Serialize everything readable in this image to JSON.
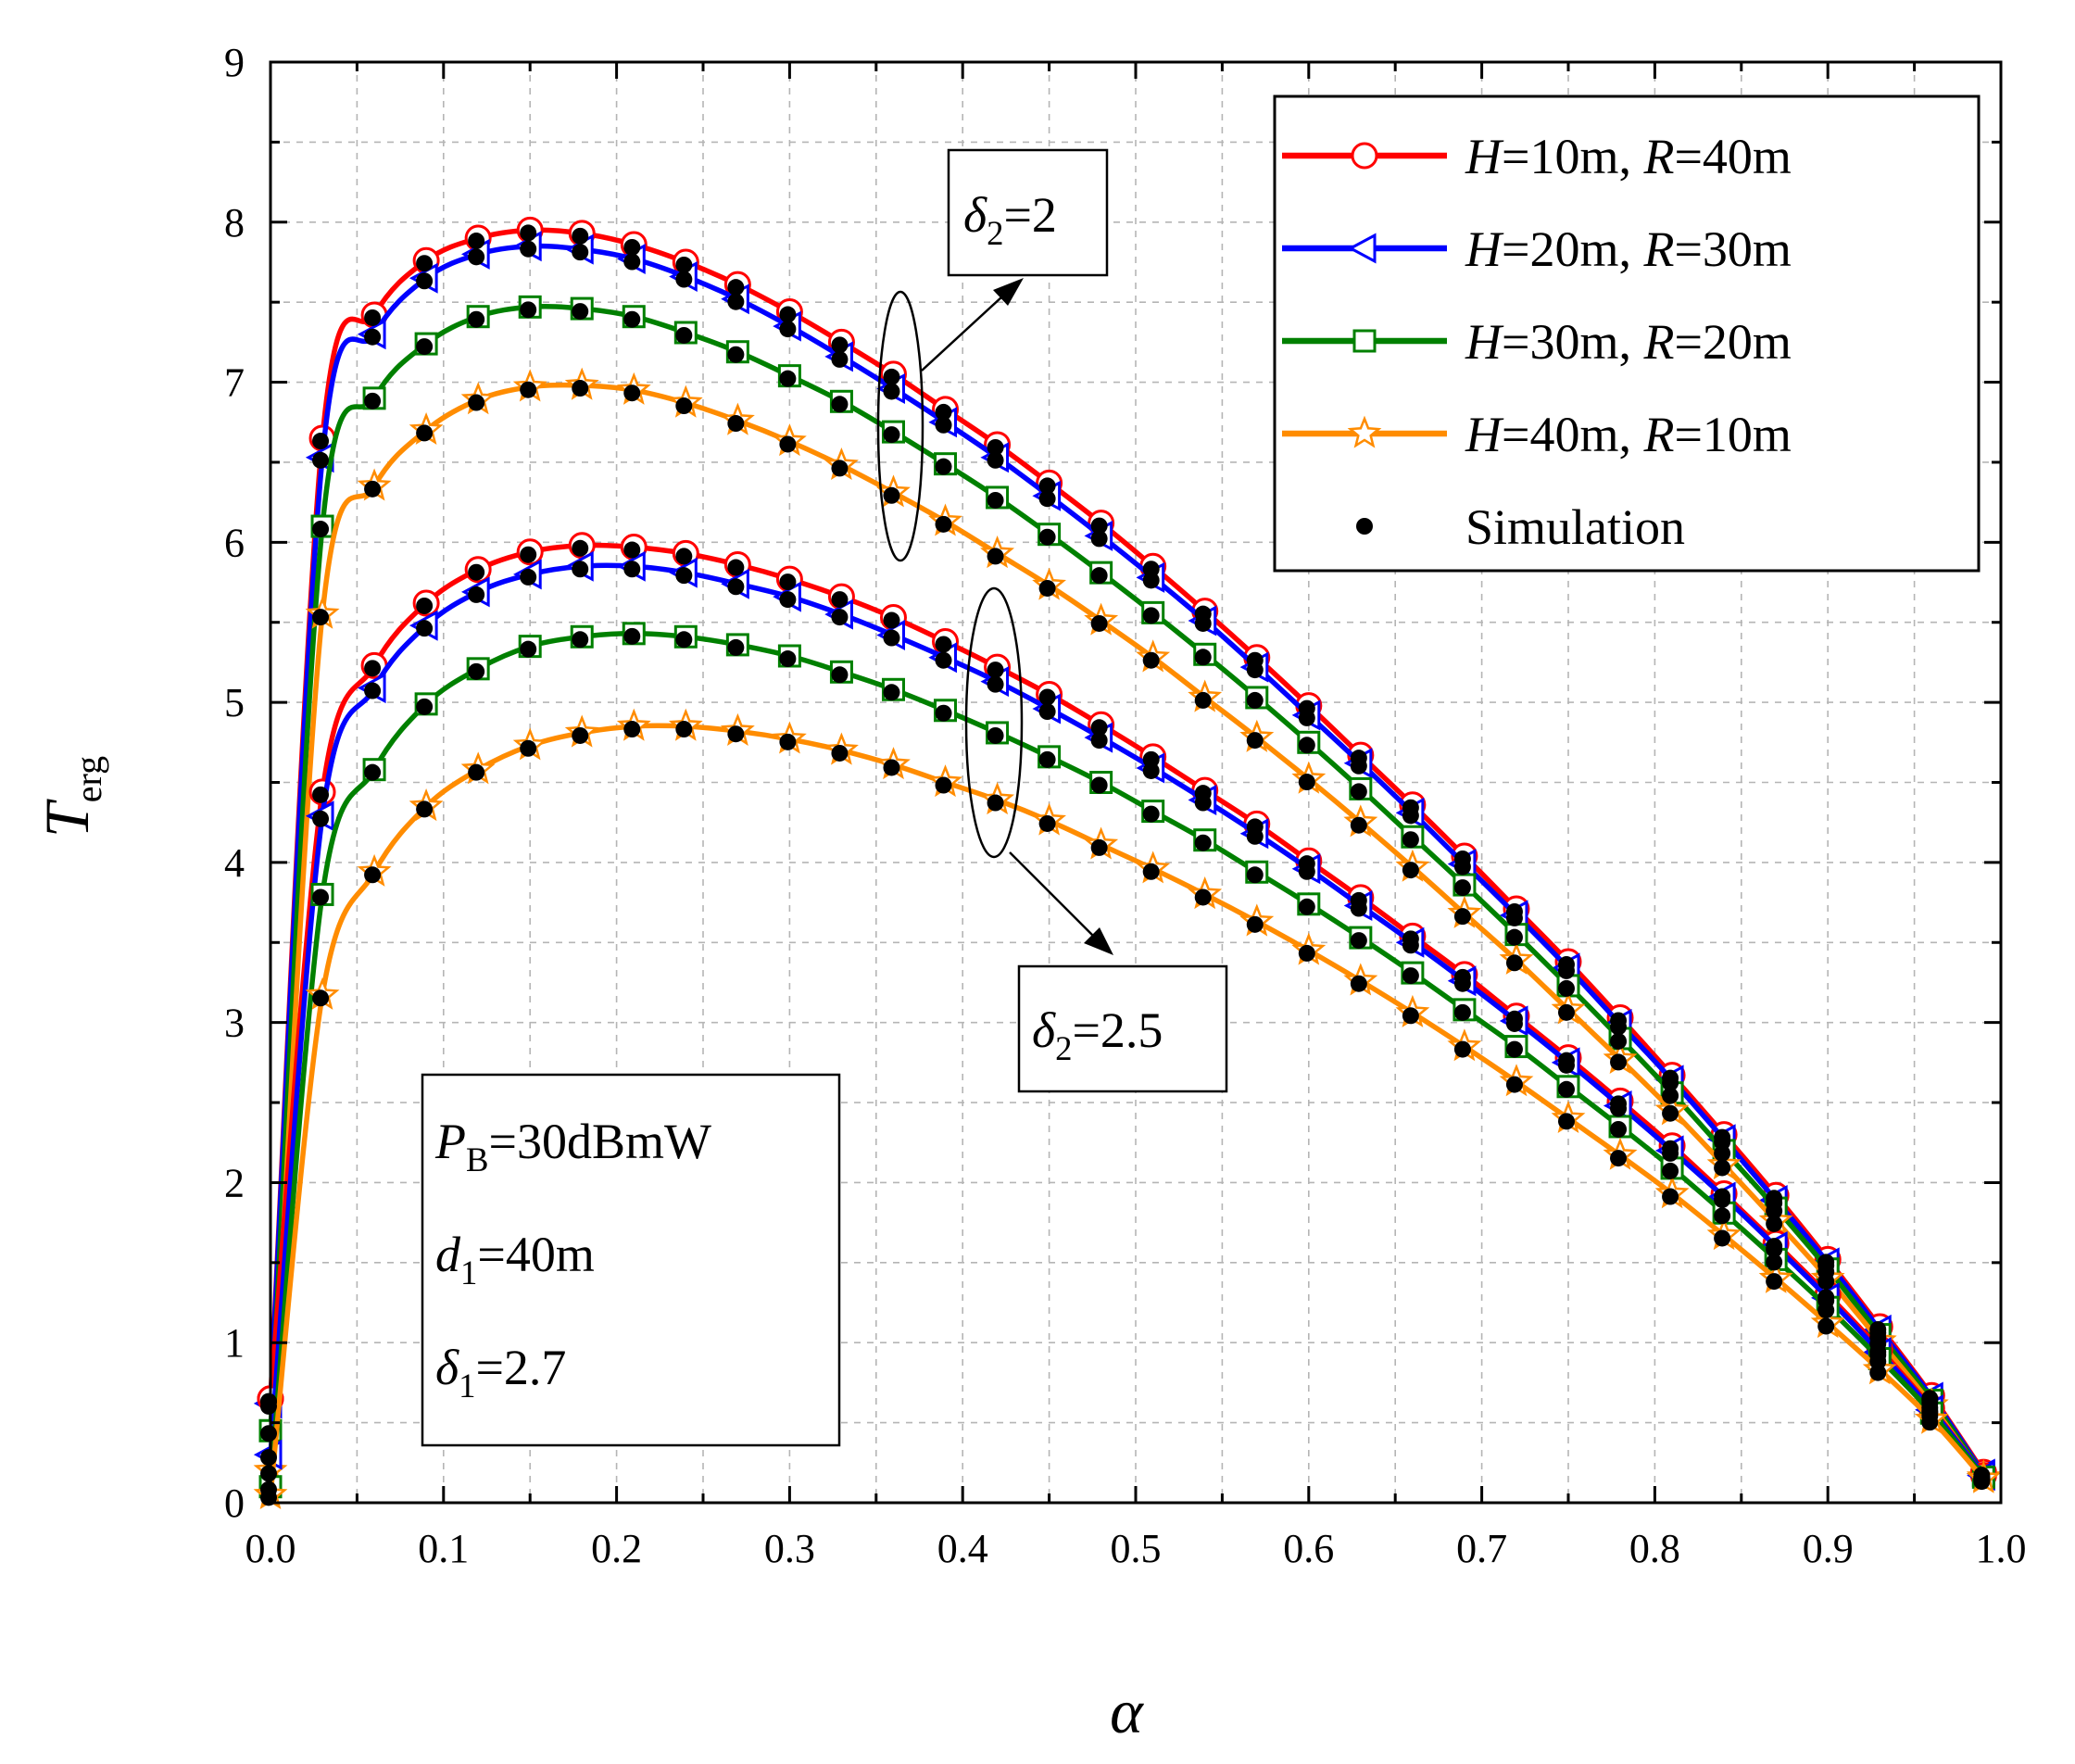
{
  "chart_data": {
    "type": "line",
    "xlabel": "α",
    "ylabel": "T",
    "ylabel_sub": "erg",
    "xlim": [
      0,
      1
    ],
    "ylim": [
      0,
      9
    ],
    "xticks": [
      "0.0",
      "0.1",
      "0.2",
      "0.3",
      "0.4",
      "0.5",
      "0.6",
      "0.7",
      "0.8",
      "0.9",
      "1.0"
    ],
    "yticks": [
      "0",
      "1",
      "2",
      "3",
      "4",
      "5",
      "6",
      "7",
      "8",
      "9"
    ],
    "grid": true,
    "legend_position": "top-right",
    "x": [
      0,
      0.03,
      0.06,
      0.09,
      0.12,
      0.15,
      0.18,
      0.21,
      0.24,
      0.27,
      0.3,
      0.33,
      0.36,
      0.39,
      0.42,
      0.45,
      0.48,
      0.51,
      0.54,
      0.57,
      0.6,
      0.63,
      0.66,
      0.69,
      0.72,
      0.75,
      0.78,
      0.81,
      0.84,
      0.87,
      0.9,
      0.93,
      0.96,
      0.99
    ],
    "groups": [
      {
        "label": "δ2=2",
        "series": [
          {
            "name": "H=10m, R=40m",
            "color": "#ff0000",
            "marker": "circle",
            "values": [
              0.65,
              6.65,
              7.42,
              7.76,
              7.9,
              7.95,
              7.93,
              7.86,
              7.75,
              7.61,
              7.44,
              7.25,
              7.05,
              6.83,
              6.61,
              6.37,
              6.12,
              5.85,
              5.57,
              5.28,
              4.98,
              4.67,
              4.36,
              4.04,
              3.71,
              3.38,
              3.03,
              2.67,
              2.3,
              1.92,
              1.52,
              1.1,
              0.67,
              0.19
            ]
          },
          {
            "name": "H=20m, R=30m",
            "color": "#0000ff",
            "marker": "triangle-left",
            "values": [
              0.62,
              6.53,
              7.3,
              7.65,
              7.8,
              7.85,
              7.83,
              7.77,
              7.66,
              7.52,
              7.35,
              7.16,
              6.96,
              6.75,
              6.53,
              6.29,
              6.04,
              5.78,
              5.51,
              5.22,
              4.92,
              4.62,
              4.31,
              3.99,
              3.67,
              3.34,
              2.99,
              2.64,
              2.27,
              1.89,
              1.5,
              1.08,
              0.66,
              0.18
            ]
          },
          {
            "name": "H=30m, R=20m",
            "color": "#008000",
            "marker": "square",
            "values": [
              0.45,
              6.1,
              6.9,
              7.24,
              7.41,
              7.47,
              7.46,
              7.41,
              7.31,
              7.19,
              7.04,
              6.88,
              6.69,
              6.49,
              6.28,
              6.05,
              5.81,
              5.56,
              5.3,
              5.03,
              4.75,
              4.46,
              4.16,
              3.86,
              3.55,
              3.23,
              2.9,
              2.56,
              2.2,
              1.84,
              1.46,
              1.05,
              0.64,
              0.17
            ]
          },
          {
            "name": "H=40m, R=10m",
            "color": "#ff8c00",
            "marker": "star",
            "values": [
              0.2,
              5.55,
              6.35,
              6.7,
              6.89,
              6.97,
              6.98,
              6.95,
              6.87,
              6.76,
              6.63,
              6.48,
              6.31,
              6.13,
              5.93,
              5.73,
              5.51,
              5.28,
              5.03,
              4.78,
              4.52,
              4.25,
              3.97,
              3.68,
              3.39,
              3.08,
              2.77,
              2.45,
              2.11,
              1.76,
              1.4,
              1.01,
              0.61,
              0.16
            ]
          }
        ]
      },
      {
        "label": "δ2=2.5",
        "series": [
          {
            "name": "H=10m, R=40m",
            "color": "#ff0000",
            "marker": "circle",
            "values": [
              0.65,
              4.44,
              5.23,
              5.62,
              5.83,
              5.94,
              5.98,
              5.97,
              5.93,
              5.86,
              5.77,
              5.66,
              5.53,
              5.38,
              5.22,
              5.05,
              4.86,
              4.66,
              4.45,
              4.24,
              4.01,
              3.78,
              3.54,
              3.3,
              3.04,
              2.78,
              2.51,
              2.23,
              1.93,
              1.62,
              1.3,
              0.96,
              0.59,
              0.17
            ]
          },
          {
            "name": "H=20m, R=30m",
            "color": "#0000ff",
            "marker": "triangle-left",
            "values": [
              0.3,
              4.29,
              5.09,
              5.48,
              5.69,
              5.8,
              5.85,
              5.85,
              5.81,
              5.74,
              5.66,
              5.55,
              5.42,
              5.28,
              5.13,
              4.96,
              4.78,
              4.59,
              4.39,
              4.18,
              3.96,
              3.73,
              3.5,
              3.26,
              3.01,
              2.75,
              2.48,
              2.2,
              1.91,
              1.6,
              1.28,
              0.94,
              0.58,
              0.17
            ]
          },
          {
            "name": "H=30m, R=20m",
            "color": "#008000",
            "marker": "square",
            "values": [
              0.1,
              3.8,
              4.58,
              4.99,
              5.21,
              5.35,
              5.41,
              5.43,
              5.41,
              5.36,
              5.29,
              5.19,
              5.08,
              4.95,
              4.81,
              4.66,
              4.5,
              4.32,
              4.14,
              3.94,
              3.74,
              3.53,
              3.31,
              3.08,
              2.85,
              2.6,
              2.35,
              2.09,
              1.81,
              1.52,
              1.22,
              0.9,
              0.56,
              0.16
            ]
          },
          {
            "name": "H=40m, R=10m",
            "color": "#ff8c00",
            "marker": "star",
            "values": [
              0.05,
              3.17,
              3.94,
              4.35,
              4.58,
              4.73,
              4.81,
              4.85,
              4.85,
              4.82,
              4.77,
              4.7,
              4.61,
              4.5,
              4.39,
              4.26,
              4.11,
              3.96,
              3.8,
              3.63,
              3.45,
              3.26,
              3.06,
              2.85,
              2.63,
              2.4,
              2.17,
              1.93,
              1.67,
              1.4,
              1.12,
              0.83,
              0.52,
              0.15
            ]
          }
        ]
      }
    ],
    "legend": [
      {
        "label": "H=10m, R=40m",
        "color": "#ff0000",
        "marker": "circle"
      },
      {
        "label": "H=20m, R=30m",
        "color": "#0000ff",
        "marker": "triangle-left"
      },
      {
        "label": "H=30m, R=20m",
        "color": "#008000",
        "marker": "square"
      },
      {
        "label": "H=40m, R=10m",
        "color": "#ff8c00",
        "marker": "star"
      },
      {
        "label": "Simulation",
        "color": "#000000",
        "marker": "dot"
      }
    ],
    "annotations": {
      "delta2_a": "δ2=2",
      "delta2_b": "δ2=2.5",
      "params": [
        "PB=30dBmW",
        "d1=40m",
        "δ1=2.7"
      ]
    }
  }
}
